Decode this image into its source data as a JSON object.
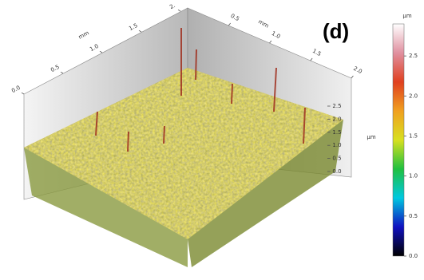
{
  "chart_data": {
    "type": "surface3d",
    "title": "(d)",
    "x_axis": {
      "label": "mm",
      "lim": [
        0,
        2
      ],
      "ticks": [
        {
          "value": 0,
          "label": "0.0"
        },
        0.5,
        {
          "value": 1,
          "label": "1.0"
        },
        1.5,
        {
          "value": 2,
          "label": "2."
        }
      ]
    },
    "y_axis": {
      "label": "mm",
      "lim": [
        0,
        2
      ],
      "ticks": [
        0.5,
        {
          "value": 1,
          "label": "1.0"
        },
        1.5,
        {
          "value": 2,
          "label": "2.0"
        }
      ]
    },
    "z_axis": {
      "label": "µm",
      "lim": [
        0,
        2.5
      ],
      "ticks": [
        {
          "value": 0,
          "label": "0.0"
        },
        0.5,
        {
          "value": 1,
          "label": "1.0"
        },
        1.5,
        {
          "value": 2,
          "label": "2.0"
        },
        2.5
      ]
    },
    "colorbar": {
      "label": "µm",
      "lim": [
        0,
        2.9
      ],
      "ticks": [
        {
          "value": 0,
          "label": "0.0"
        },
        0.5,
        {
          "value": 1,
          "label": "1.0"
        },
        1.5,
        {
          "value": 2,
          "label": "2.0"
        },
        2.5
      ],
      "colormap": [
        "#000000",
        "#1010c0",
        "#00c8e0",
        "#20c040",
        "#d8e020",
        "#f0a020",
        "#e04020",
        "#e090a0",
        "#ffffff"
      ]
    }
  }
}
